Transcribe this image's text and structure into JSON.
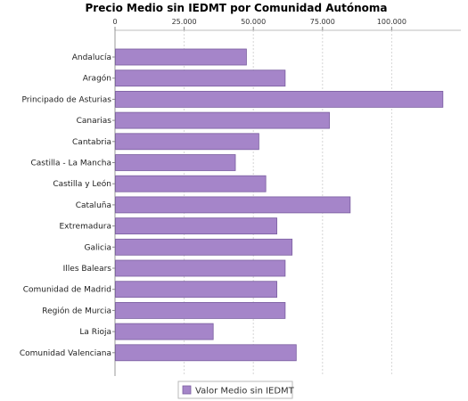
{
  "chart_data": {
    "type": "bar",
    "orientation": "horizontal",
    "title": "Precio Medio sin IEDMT por Comunidad Autónoma",
    "xlabel": "",
    "ylabel": "",
    "xlim": [
      0,
      125000
    ],
    "ticks": [
      0,
      25000,
      50000,
      75000,
      100000
    ],
    "tick_labels": [
      "0",
      "25.000",
      "50.000",
      "75.000",
      "100.000"
    ],
    "tick_position": "top",
    "grid": true,
    "categories": [
      "Andalucía",
      "Aragón",
      "Principado de Asturias",
      "Canarias",
      "Cantabria",
      "Castilla - La Mancha",
      "Castilla y León",
      "Cataluña",
      "Extremadura",
      "Galicia",
      "Illes Balears",
      "Comunidad de Madrid",
      "Región de Murcia",
      "La Rioja",
      "Comunidad Valenciana"
    ],
    "series": [
      {
        "name": "Valor Medio sin IEDMT",
        "values": [
          47500,
          61500,
          118500,
          77500,
          52000,
          43500,
          54500,
          85000,
          58500,
          64000,
          61500,
          58500,
          61500,
          35500,
          65500
        ]
      }
    ],
    "bar_color": "#a585c9",
    "bar_edge_color": "#7a5ea0",
    "legend_position": "bottom-center"
  }
}
